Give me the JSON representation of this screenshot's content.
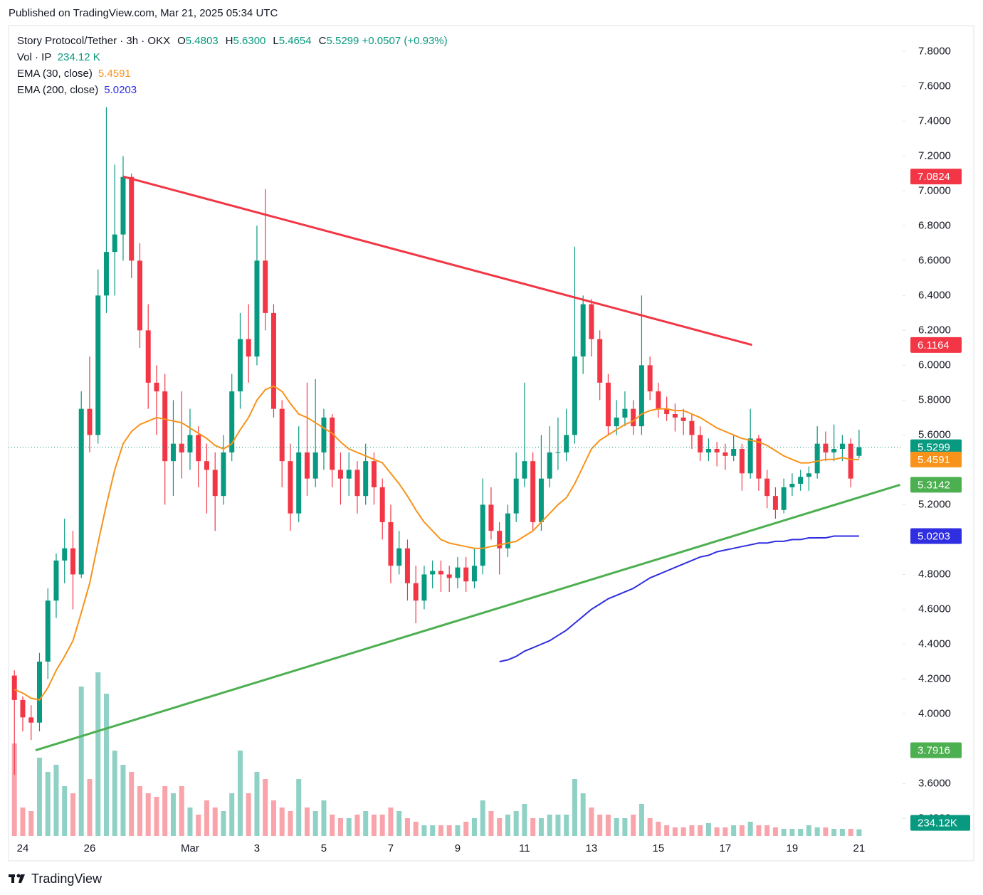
{
  "header": {
    "published": "Published on TradingView.com, Mar 21, 2025 05:34 UTC",
    "symbol": "Story Protocol/Tether · 3h · OKX",
    "quote": [
      {
        "k": "O",
        "v": "5.4803"
      },
      {
        "k": "H",
        "v": "5.6300"
      },
      {
        "k": "L",
        "v": "5.4654"
      },
      {
        "k": "C",
        "v": "5.5299"
      }
    ],
    "change": "+0.0507 (+0.93%)",
    "vol_label": "Vol · IP",
    "vol_value": "234.12 K",
    "brand": "TradingView"
  },
  "chart_data": {
    "type": "candlestick",
    "up_color": "#089981",
    "down_color": "#f23645",
    "xlim": [
      -0.7,
      106.2
    ],
    "ylim": [
      3.3,
      7.94
    ],
    "xticks": [
      {
        "value": 1,
        "label": "24"
      },
      {
        "value": 9,
        "label": "26"
      },
      {
        "value": 21,
        "label": "Mar"
      },
      {
        "value": 29,
        "label": "3"
      },
      {
        "value": 37,
        "label": "5"
      },
      {
        "value": 45,
        "label": "7"
      },
      {
        "value": 53,
        "label": "9"
      },
      {
        "value": 61,
        "label": "11"
      },
      {
        "value": 69,
        "label": "13"
      },
      {
        "value": 77,
        "label": "15"
      },
      {
        "value": 85,
        "label": "17"
      },
      {
        "value": 93,
        "label": "19"
      },
      {
        "value": 101,
        "label": "21"
      }
    ],
    "yticks": [
      {
        "value": 7.8,
        "label": "7.8000"
      },
      {
        "value": 7.6,
        "label": "7.6000"
      },
      {
        "value": 7.4,
        "label": "7.4000"
      },
      {
        "value": 7.2,
        "label": "7.2000"
      },
      {
        "value": 7,
        "label": "7.0000"
      },
      {
        "value": 6.8,
        "label": "6.8000"
      },
      {
        "value": 6.6,
        "label": "6.6000"
      },
      {
        "value": 6.4,
        "label": "6.4000"
      },
      {
        "value": 6.2,
        "label": "6.2000"
      },
      {
        "value": 6,
        "label": "6.0000"
      },
      {
        "value": 5.8,
        "label": "5.8000"
      },
      {
        "value": 5.6,
        "label": "5.6000"
      },
      {
        "value": 5.2,
        "label": "5.2000"
      },
      {
        "value": 4.8,
        "label": "4.8000"
      },
      {
        "value": 4.6,
        "label": "4.6000"
      },
      {
        "value": 4.4,
        "label": "4.4000"
      },
      {
        "value": 4.2,
        "label": "4.2000"
      },
      {
        "value": 4,
        "label": "4.0000"
      },
      {
        "value": 3.6,
        "label": "3.6000"
      },
      {
        "value": 3.4,
        "label": "3.4000"
      }
    ],
    "ohlc": [
      [
        4.22,
        4.25,
        3.65,
        4.08
      ],
      [
        4.08,
        4.1,
        3.9,
        3.98
      ],
      [
        3.98,
        4.05,
        3.85,
        3.95
      ],
      [
        3.95,
        4.35,
        3.9,
        4.3
      ],
      [
        4.3,
        4.72,
        4.2,
        4.65
      ],
      [
        4.65,
        4.92,
        4.55,
        4.88
      ],
      [
        4.88,
        5.12,
        4.75,
        4.95
      ],
      [
        4.95,
        5.05,
        4.6,
        4.8
      ],
      [
        4.8,
        5.85,
        4.78,
        5.75
      ],
      [
        5.75,
        6.05,
        5.5,
        5.6
      ],
      [
        5.6,
        6.55,
        5.55,
        6.4
      ],
      [
        6.4,
        7.48,
        6.3,
        6.65
      ],
      [
        6.65,
        7.15,
        6.4,
        6.75
      ],
      [
        6.75,
        7.2,
        6.6,
        7.08
      ],
      [
        7.08,
        7.1,
        6.5,
        6.6
      ],
      [
        6.6,
        6.7,
        6.1,
        6.2
      ],
      [
        6.2,
        6.35,
        5.75,
        5.9
      ],
      [
        5.9,
        6.0,
        5.6,
        5.85
      ],
      [
        5.85,
        5.95,
        5.2,
        5.45
      ],
      [
        5.45,
        5.8,
        5.25,
        5.55
      ],
      [
        5.55,
        5.85,
        5.35,
        5.5
      ],
      [
        5.5,
        5.75,
        5.4,
        5.6
      ],
      [
        5.6,
        5.65,
        5.3,
        5.45
      ],
      [
        5.45,
        5.55,
        5.15,
        5.4
      ],
      [
        5.4,
        5.5,
        5.05,
        5.25
      ],
      [
        5.25,
        5.6,
        5.2,
        5.5
      ],
      [
        5.5,
        5.95,
        5.45,
        5.85
      ],
      [
        5.85,
        6.3,
        5.75,
        6.15
      ],
      [
        6.15,
        6.35,
        5.9,
        6.05
      ],
      [
        6.05,
        6.8,
        6.0,
        6.6
      ],
      [
        6.6,
        7.01,
        6.2,
        6.3
      ],
      [
        6.3,
        6.35,
        5.7,
        5.75
      ],
      [
        5.75,
        5.8,
        5.3,
        5.45
      ],
      [
        5.45,
        5.55,
        5.05,
        5.15
      ],
      [
        5.15,
        5.65,
        5.1,
        5.5
      ],
      [
        5.5,
        5.9,
        5.25,
        5.35
      ],
      [
        5.35,
        5.92,
        5.3,
        5.5
      ],
      [
        5.5,
        5.75,
        5.4,
        5.7
      ],
      [
        5.7,
        5.72,
        5.3,
        5.4
      ],
      [
        5.4,
        5.5,
        5.2,
        5.35
      ],
      [
        5.35,
        5.5,
        5.25,
        5.4
      ],
      [
        5.4,
        5.45,
        5.15,
        5.25
      ],
      [
        5.25,
        5.55,
        5.2,
        5.45
      ],
      [
        5.45,
        5.5,
        5.2,
        5.3
      ],
      [
        5.3,
        5.35,
        5.0,
        5.1
      ],
      [
        5.1,
        5.2,
        4.75,
        4.85
      ],
      [
        4.85,
        5.05,
        4.8,
        4.95
      ],
      [
        4.95,
        5.0,
        4.65,
        4.75
      ],
      [
        4.75,
        4.85,
        4.52,
        4.65
      ],
      [
        4.65,
        4.85,
        4.6,
        4.8
      ],
      [
        4.8,
        4.88,
        4.72,
        4.82
      ],
      [
        4.82,
        4.88,
        4.7,
        4.8
      ],
      [
        4.8,
        4.85,
        4.7,
        4.78
      ],
      [
        4.78,
        4.9,
        4.72,
        4.84
      ],
      [
        4.84,
        4.9,
        4.7,
        4.76
      ],
      [
        4.76,
        4.95,
        4.72,
        4.85
      ],
      [
        4.85,
        5.35,
        4.8,
        5.2
      ],
      [
        5.2,
        5.3,
        5.0,
        5.05
      ],
      [
        5.05,
        5.1,
        4.8,
        4.95
      ],
      [
        4.95,
        5.2,
        4.9,
        5.15
      ],
      [
        5.15,
        5.5,
        5.1,
        5.35
      ],
      [
        5.35,
        5.9,
        5.3,
        5.45
      ],
      [
        5.45,
        5.5,
        5.05,
        5.1
      ],
      [
        5.1,
        5.6,
        5.05,
        5.35
      ],
      [
        5.35,
        5.65,
        5.3,
        5.5
      ],
      [
        5.5,
        5.7,
        5.4,
        5.5
      ],
      [
        5.5,
        5.75,
        5.45,
        5.6
      ],
      [
        5.6,
        6.68,
        5.55,
        6.05
      ],
      [
        6.05,
        6.4,
        5.95,
        6.35
      ],
      [
        6.35,
        6.38,
        6.05,
        6.15
      ],
      [
        6.15,
        6.2,
        5.8,
        5.9
      ],
      [
        5.9,
        5.95,
        5.6,
        5.65
      ],
      [
        5.65,
        5.8,
        5.6,
        5.7
      ],
      [
        5.7,
        5.85,
        5.65,
        5.75
      ],
      [
        5.75,
        5.8,
        5.6,
        5.65
      ],
      [
        5.65,
        6.4,
        5.6,
        6.0
      ],
      [
        6.0,
        6.05,
        5.8,
        5.85
      ],
      [
        5.85,
        5.9,
        5.7,
        5.75
      ],
      [
        5.75,
        5.82,
        5.68,
        5.72
      ],
      [
        5.72,
        5.78,
        5.62,
        5.7
      ],
      [
        5.7,
        5.75,
        5.6,
        5.68
      ],
      [
        5.68,
        5.72,
        5.52,
        5.6
      ],
      [
        5.6,
        5.65,
        5.45,
        5.5
      ],
      [
        5.5,
        5.58,
        5.45,
        5.52
      ],
      [
        5.52,
        5.56,
        5.42,
        5.5
      ],
      [
        5.5,
        5.55,
        5.4,
        5.48
      ],
      [
        5.48,
        5.6,
        5.45,
        5.52
      ],
      [
        5.52,
        5.55,
        5.28,
        5.38
      ],
      [
        5.38,
        5.75,
        5.35,
        5.58
      ],
      [
        5.58,
        5.6,
        5.28,
        5.35
      ],
      [
        5.35,
        5.4,
        5.18,
        5.25
      ],
      [
        5.25,
        5.3,
        5.12,
        5.17
      ],
      [
        5.17,
        5.35,
        5.15,
        5.3
      ],
      [
        5.3,
        5.38,
        5.25,
        5.32
      ],
      [
        5.32,
        5.4,
        5.28,
        5.36
      ],
      [
        5.36,
        5.42,
        5.28,
        5.38
      ],
      [
        5.38,
        5.65,
        5.35,
        5.55
      ],
      [
        5.55,
        5.62,
        5.45,
        5.5
      ],
      [
        5.5,
        5.66,
        5.45,
        5.52
      ],
      [
        5.52,
        5.6,
        5.45,
        5.55
      ],
      [
        5.55,
        5.58,
        5.3,
        5.35
      ],
      [
        5.4803,
        5.63,
        5.4654,
        5.5299
      ]
    ],
    "volume_ylim": [
      0,
      10000
    ],
    "volume": [
      3250,
      1000,
      875,
      2750,
      2250,
      2500,
      1750,
      1500,
      5250,
      2000,
      5750,
      5000,
      3000,
      2500,
      2250,
      1750,
      1500,
      1375,
      1750,
      1500,
      1750,
      1000,
      750,
      1250,
      1000,
      875,
      1500,
      3000,
      1500,
      2250,
      2000,
      1250,
      1000,
      875,
      2000,
      1000,
      875,
      1250,
      750,
      625,
      625,
      750,
      875,
      750,
      750,
      1000,
      875,
      625,
      500,
      375,
      375,
      375,
      375,
      375,
      500,
      625,
      1250,
      875,
      625,
      750,
      875,
      1125,
      625,
      625,
      750,
      750,
      750,
      2000,
      1500,
      1000,
      750,
      750,
      625,
      625,
      750,
      1125,
      625,
      500,
      375,
      300,
      300,
      375,
      375,
      450,
      300,
      300,
      375,
      375,
      500,
      375,
      375,
      300,
      250,
      250,
      250,
      375,
      300,
      300,
      250,
      250,
      250,
      234.12
    ],
    "volume_last_label": "234.12K",
    "ema": [
      {
        "name": "EMA (30, close)",
        "color": "#f7931a",
        "values": [
          4.14,
          4.12,
          4.09,
          4.08,
          4.15,
          4.25,
          4.33,
          4.42,
          4.58,
          4.75,
          4.98,
          5.2,
          5.4,
          5.55,
          5.62,
          5.66,
          5.68,
          5.7,
          5.69,
          5.68,
          5.67,
          5.64,
          5.61,
          5.58,
          5.54,
          5.52,
          5.55,
          5.63,
          5.7,
          5.8,
          5.86,
          5.88,
          5.85,
          5.78,
          5.72,
          5.7,
          5.67,
          5.64,
          5.61,
          5.56,
          5.52,
          5.5,
          5.48,
          5.46,
          5.44,
          5.38,
          5.32,
          5.25,
          5.17,
          5.1,
          5.05,
          5.0,
          4.98,
          4.97,
          4.96,
          4.95,
          4.95,
          4.96,
          4.97,
          4.98,
          4.99,
          5.02,
          5.05,
          5.1,
          5.15,
          5.2,
          5.24,
          5.32,
          5.42,
          5.52,
          5.57,
          5.6,
          5.63,
          5.66,
          5.68,
          5.72,
          5.74,
          5.75,
          5.75,
          5.74,
          5.74,
          5.72,
          5.7,
          5.67,
          5.64,
          5.62,
          5.6,
          5.58,
          5.57,
          5.56,
          5.54,
          5.51,
          5.48,
          5.46,
          5.44,
          5.44,
          5.45,
          5.46,
          5.46,
          5.47,
          5.46,
          5.4591
        ]
      },
      {
        "name": "EMA (200, close)",
        "color": "#2f2ee0",
        "values": [
          null,
          null,
          null,
          null,
          null,
          null,
          null,
          null,
          null,
          null,
          null,
          null,
          null,
          null,
          null,
          null,
          null,
          null,
          null,
          null,
          null,
          null,
          null,
          null,
          null,
          null,
          null,
          null,
          null,
          null,
          null,
          null,
          null,
          null,
          null,
          null,
          null,
          null,
          null,
          null,
          null,
          null,
          null,
          null,
          null,
          null,
          null,
          null,
          null,
          null,
          null,
          null,
          null,
          null,
          null,
          null,
          null,
          null,
          4.3,
          4.31,
          4.33,
          4.36,
          4.38,
          4.4,
          4.42,
          4.45,
          4.48,
          4.52,
          4.56,
          4.6,
          4.63,
          4.66,
          4.68,
          4.7,
          4.72,
          4.75,
          4.78,
          4.8,
          4.82,
          4.84,
          4.86,
          4.88,
          4.9,
          4.91,
          4.93,
          4.94,
          4.95,
          4.96,
          4.97,
          4.98,
          4.98,
          4.99,
          4.99,
          5.0,
          5.0,
          5.01,
          5.01,
          5.01,
          5.02,
          5.02,
          5.02,
          5.0203
        ]
      }
    ],
    "trendlines": [
      {
        "color": "#f23645",
        "x": [
          13,
          88.2
        ],
        "y": [
          7.0824,
          6.1164
        ]
      },
      {
        "color": "#4caf50",
        "x": [
          2.53,
          105.9
        ],
        "y": [
          3.7916,
          5.3142
        ]
      }
    ]
  }
}
